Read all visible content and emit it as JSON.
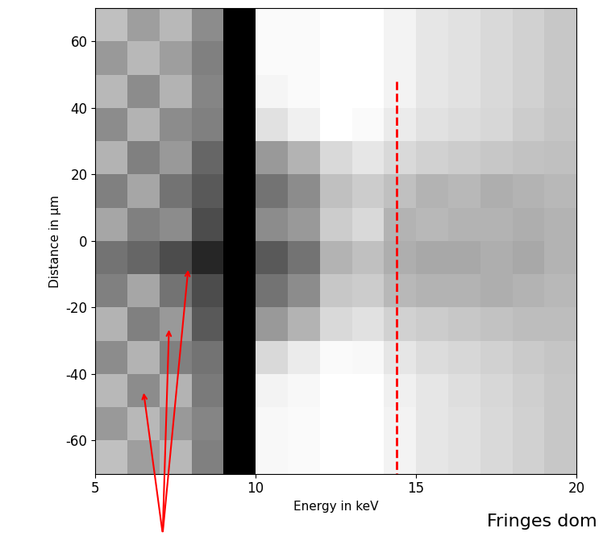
{
  "chart_data": {
    "type": "heatmap",
    "x_label": "Energy in keV",
    "y_label": "Distance in µm",
    "xlim": [
      5,
      20
    ],
    "ylim": [
      -70,
      70
    ],
    "xticks": [
      5,
      10,
      15,
      20
    ],
    "yticks": [
      -60,
      -40,
      -20,
      0,
      20,
      40,
      60
    ],
    "color": "gray",
    "x_edges": [
      5,
      6,
      7,
      8,
      9,
      10,
      11,
      12,
      13,
      14,
      15,
      16,
      17,
      18,
      19,
      20
    ],
    "y_edges": [
      -70,
      -60,
      -50,
      -40,
      -30,
      -20,
      -10,
      0,
      10,
      20,
      30,
      40,
      50,
      60,
      70
    ],
    "cell_range": [
      0,
      1
    ],
    "cells": [
      [
        0.75,
        0.62,
        0.72,
        0.5,
        0.0,
        0.97,
        0.98,
        1.0,
        1.0,
        0.95,
        0.9,
        0.88,
        0.85,
        0.82,
        0.78
      ],
      [
        0.6,
        0.72,
        0.6,
        0.52,
        0.0,
        0.97,
        0.98,
        1.0,
        1.0,
        0.95,
        0.9,
        0.88,
        0.85,
        0.82,
        0.78
      ],
      [
        0.72,
        0.55,
        0.7,
        0.48,
        0.0,
        0.95,
        0.97,
        1.0,
        1.0,
        0.94,
        0.9,
        0.87,
        0.84,
        0.81,
        0.78
      ],
      [
        0.55,
        0.7,
        0.5,
        0.45,
        0.0,
        0.85,
        0.92,
        0.98,
        0.97,
        0.9,
        0.86,
        0.84,
        0.82,
        0.79,
        0.77
      ],
      [
        0.7,
        0.5,
        0.6,
        0.35,
        0.0,
        0.6,
        0.7,
        0.85,
        0.88,
        0.82,
        0.8,
        0.78,
        0.76,
        0.74,
        0.74
      ],
      [
        0.5,
        0.65,
        0.45,
        0.3,
        0.0,
        0.45,
        0.55,
        0.78,
        0.8,
        0.72,
        0.7,
        0.7,
        0.68,
        0.7,
        0.72
      ],
      [
        0.45,
        0.4,
        0.3,
        0.15,
        0.0,
        0.35,
        0.45,
        0.7,
        0.75,
        0.68,
        0.66,
        0.66,
        0.68,
        0.66,
        0.7
      ],
      [
        0.65,
        0.5,
        0.55,
        0.3,
        0.0,
        0.55,
        0.6,
        0.8,
        0.85,
        0.7,
        0.72,
        0.7,
        0.7,
        0.68,
        0.7
      ],
      [
        0.5,
        0.65,
        0.45,
        0.35,
        0.0,
        0.45,
        0.55,
        0.75,
        0.8,
        0.75,
        0.7,
        0.72,
        0.68,
        0.7,
        0.72
      ],
      [
        0.7,
        0.5,
        0.6,
        0.4,
        0.0,
        0.6,
        0.7,
        0.85,
        0.9,
        0.85,
        0.82,
        0.8,
        0.78,
        0.76,
        0.75
      ],
      [
        0.55,
        0.7,
        0.55,
        0.5,
        0.0,
        0.88,
        0.94,
        1.0,
        0.98,
        0.92,
        0.88,
        0.86,
        0.84,
        0.8,
        0.77
      ],
      [
        0.72,
        0.55,
        0.7,
        0.52,
        0.0,
        0.96,
        0.98,
        1.0,
        1.0,
        0.95,
        0.9,
        0.88,
        0.85,
        0.82,
        0.78
      ],
      [
        0.6,
        0.72,
        0.62,
        0.5,
        0.0,
        0.98,
        0.98,
        1.0,
        1.0,
        0.95,
        0.9,
        0.88,
        0.85,
        0.82,
        0.78
      ],
      [
        0.75,
        0.62,
        0.72,
        0.55,
        0.0,
        0.98,
        0.98,
        1.0,
        1.0,
        0.95,
        0.9,
        0.88,
        0.85,
        0.82,
        0.78
      ]
    ],
    "reference_line": {
      "x": 14.4,
      "y": [
        48,
        -70
      ],
      "color": "red",
      "line_style": "dashed"
    },
    "arrows": {
      "tail": [
        7.1,
        -88
      ],
      "heads": [
        [
          6.5,
          -45
        ],
        [
          7.3,
          -26
        ],
        [
          7.9,
          -8
        ]
      ],
      "color": "red"
    },
    "annotation": "Fringes dom"
  }
}
